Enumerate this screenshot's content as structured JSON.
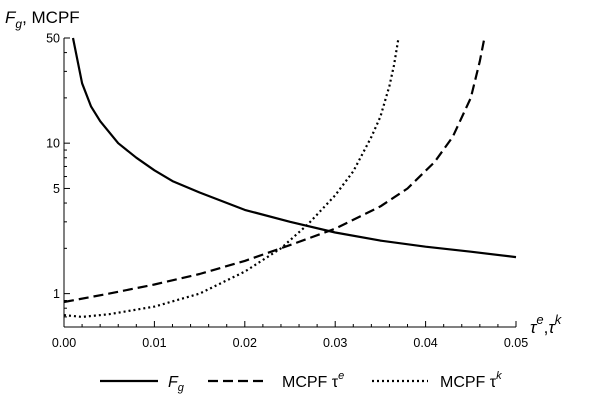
{
  "chart_data": {
    "type": "line",
    "title": "",
    "ylabel": {
      "main": "F",
      "sub": "g",
      "rest": ", MCPF"
    },
    "xlabel": {
      "a": "τ",
      "a_sup": "e",
      "sep": ",",
      "b": "τ",
      "b_sup": "k"
    },
    "y_scale": "log",
    "xlim": [
      0,
      0.05
    ],
    "ylim": [
      0.6,
      50
    ],
    "x_ticks": [
      "0.00",
      "0.01",
      "0.02",
      "0.03",
      "0.04",
      "0.05"
    ],
    "y_ticks": [
      "1",
      "5",
      "10",
      "50"
    ],
    "grid": false,
    "legend_position": "bottom",
    "series": [
      {
        "name": "F",
        "name_sub": "g",
        "dash": "solid",
        "x": [
          0.001,
          0.002,
          0.003,
          0.004,
          0.006,
          0.008,
          0.01,
          0.012,
          0.015,
          0.02,
          0.025,
          0.03,
          0.035,
          0.04,
          0.045,
          0.05
        ],
        "y": [
          50,
          25,
          17.5,
          14,
          10,
          8,
          6.6,
          5.6,
          4.7,
          3.6,
          3.0,
          2.55,
          2.25,
          2.05,
          1.9,
          1.75
        ]
      },
      {
        "name": "MCPF τ",
        "name_sup": "e",
        "dash": "dashed",
        "x": [
          0,
          0.005,
          0.01,
          0.015,
          0.02,
          0.025,
          0.03,
          0.035,
          0.038,
          0.041,
          0.043,
          0.045,
          0.046,
          0.0465
        ],
        "y": [
          0.88,
          1.0,
          1.15,
          1.35,
          1.65,
          2.1,
          2.7,
          3.8,
          5.0,
          7.5,
          11,
          20,
          35,
          50
        ]
      },
      {
        "name": "MCPF τ",
        "name_sup": "k",
        "dash": "dotted",
        "x": [
          0,
          0.002,
          0.005,
          0.01,
          0.015,
          0.02,
          0.024,
          0.027,
          0.03,
          0.032,
          0.034,
          0.035,
          0.036,
          0.0365,
          0.037
        ],
        "y": [
          0.72,
          0.7,
          0.73,
          0.82,
          1.0,
          1.4,
          2.0,
          2.9,
          4.5,
          6.5,
          11,
          15,
          24,
          33,
          50
        ]
      }
    ]
  }
}
